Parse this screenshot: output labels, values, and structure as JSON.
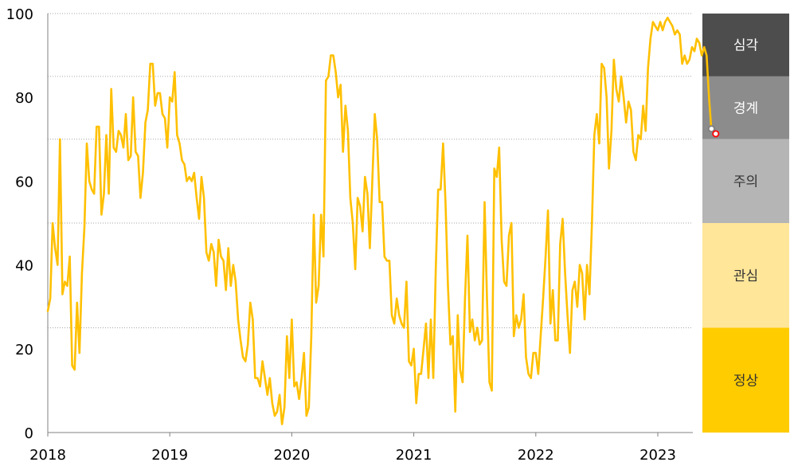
{
  "chart_data": {
    "type": "line",
    "title": "",
    "xlabel": "",
    "ylabel": "",
    "ylim": [
      0,
      100
    ],
    "xlim": [
      2018.0,
      2023.28
    ],
    "grid": "dotted horizontal at band thresholds",
    "y_ticks": [
      "0",
      "20",
      "40",
      "60",
      "80",
      "100"
    ],
    "x_ticks": [
      "2018",
      "2019",
      "2020",
      "2021",
      "2022",
      "2023"
    ],
    "line_color": "#FFC000",
    "bands": [
      {
        "label": "심각",
        "from": 85,
        "to": 100,
        "color": "#4D4D4D",
        "text_color": "#FFFFFF"
      },
      {
        "label": "경계",
        "from": 70,
        "to": 85,
        "color": "#8C8C8C",
        "text_color": "#FFFFFF"
      },
      {
        "label": "주의",
        "from": 50,
        "to": 70,
        "color": "#B5B5B5",
        "text_color": "#333333"
      },
      {
        "label": "관심",
        "from": 25,
        "to": 50,
        "color": "#FFE699",
        "text_color": "#333333"
      },
      {
        "label": "정상",
        "from": 0,
        "to": 25,
        "color": "#FFCC00",
        "text_color": "#333333"
      }
    ],
    "series": [
      {
        "color": "#FFC000",
        "points": [
          [
            2018.0,
            29
          ],
          [
            2018.02,
            32
          ],
          [
            2018.04,
            50
          ],
          [
            2018.06,
            44
          ],
          [
            2018.08,
            40
          ],
          [
            2018.1,
            70
          ],
          [
            2018.12,
            33
          ],
          [
            2018.14,
            36
          ],
          [
            2018.16,
            35
          ],
          [
            2018.18,
            42
          ],
          [
            2018.2,
            16
          ],
          [
            2018.22,
            15
          ],
          [
            2018.24,
            31
          ],
          [
            2018.26,
            19
          ],
          [
            2018.28,
            38
          ],
          [
            2018.3,
            49
          ],
          [
            2018.32,
            69
          ],
          [
            2018.34,
            60
          ],
          [
            2018.36,
            58
          ],
          [
            2018.38,
            57
          ],
          [
            2018.4,
            73
          ],
          [
            2018.42,
            73
          ],
          [
            2018.44,
            52
          ],
          [
            2018.46,
            57
          ],
          [
            2018.48,
            71
          ],
          [
            2018.5,
            57
          ],
          [
            2018.52,
            82
          ],
          [
            2018.54,
            68
          ],
          [
            2018.56,
            67
          ],
          [
            2018.58,
            72
          ],
          [
            2018.6,
            71
          ],
          [
            2018.62,
            68
          ],
          [
            2018.64,
            76
          ],
          [
            2018.66,
            65
          ],
          [
            2018.68,
            66
          ],
          [
            2018.7,
            80
          ],
          [
            2018.72,
            67
          ],
          [
            2018.74,
            66
          ],
          [
            2018.76,
            56
          ],
          [
            2018.78,
            62
          ],
          [
            2018.8,
            74
          ],
          [
            2018.82,
            77
          ],
          [
            2018.84,
            88
          ],
          [
            2018.86,
            88
          ],
          [
            2018.88,
            78
          ],
          [
            2018.9,
            81
          ],
          [
            2018.92,
            81
          ],
          [
            2018.94,
            76
          ],
          [
            2018.96,
            75
          ],
          [
            2018.98,
            68
          ],
          [
            2019.0,
            80
          ],
          [
            2019.02,
            79
          ],
          [
            2019.04,
            86
          ],
          [
            2019.06,
            71
          ],
          [
            2019.08,
            69
          ],
          [
            2019.1,
            65
          ],
          [
            2019.12,
            64
          ],
          [
            2019.14,
            60
          ],
          [
            2019.16,
            61
          ],
          [
            2019.18,
            60
          ],
          [
            2019.2,
            62
          ],
          [
            2019.22,
            56
          ],
          [
            2019.24,
            51
          ],
          [
            2019.26,
            61
          ],
          [
            2019.28,
            56
          ],
          [
            2019.3,
            43
          ],
          [
            2019.32,
            41
          ],
          [
            2019.34,
            45
          ],
          [
            2019.36,
            43
          ],
          [
            2019.38,
            35
          ],
          [
            2019.4,
            46
          ],
          [
            2019.42,
            42
          ],
          [
            2019.44,
            41
          ],
          [
            2019.46,
            34
          ],
          [
            2019.48,
            44
          ],
          [
            2019.5,
            35
          ],
          [
            2019.52,
            40
          ],
          [
            2019.54,
            36
          ],
          [
            2019.56,
            27
          ],
          [
            2019.58,
            22
          ],
          [
            2019.6,
            18
          ],
          [
            2019.62,
            17
          ],
          [
            2019.64,
            21
          ],
          [
            2019.66,
            31
          ],
          [
            2019.68,
            27
          ],
          [
            2019.7,
            13
          ],
          [
            2019.72,
            13
          ],
          [
            2019.74,
            11
          ],
          [
            2019.76,
            17
          ],
          [
            2019.78,
            13
          ],
          [
            2019.8,
            9
          ],
          [
            2019.82,
            13
          ],
          [
            2019.84,
            7
          ],
          [
            2019.86,
            4
          ],
          [
            2019.88,
            5
          ],
          [
            2019.9,
            9
          ],
          [
            2019.92,
            2
          ],
          [
            2019.94,
            6
          ],
          [
            2019.96,
            23
          ],
          [
            2019.98,
            13
          ],
          [
            2020.0,
            27
          ],
          [
            2020.02,
            11
          ],
          [
            2020.04,
            12
          ],
          [
            2020.06,
            8
          ],
          [
            2020.08,
            13
          ],
          [
            2020.1,
            19
          ],
          [
            2020.12,
            4
          ],
          [
            2020.14,
            6
          ],
          [
            2020.16,
            23
          ],
          [
            2020.18,
            52
          ],
          [
            2020.2,
            31
          ],
          [
            2020.22,
            35
          ],
          [
            2020.24,
            52
          ],
          [
            2020.26,
            42
          ],
          [
            2020.28,
            84
          ],
          [
            2020.3,
            85
          ],
          [
            2020.32,
            90
          ],
          [
            2020.34,
            90
          ],
          [
            2020.36,
            86
          ],
          [
            2020.38,
            80
          ],
          [
            2020.4,
            83
          ],
          [
            2020.42,
            67
          ],
          [
            2020.44,
            78
          ],
          [
            2020.46,
            72
          ],
          [
            2020.48,
            56
          ],
          [
            2020.5,
            50
          ],
          [
            2020.52,
            39
          ],
          [
            2020.54,
            56
          ],
          [
            2020.56,
            54
          ],
          [
            2020.58,
            48
          ],
          [
            2020.6,
            61
          ],
          [
            2020.62,
            57
          ],
          [
            2020.64,
            44
          ],
          [
            2020.66,
            60
          ],
          [
            2020.68,
            76
          ],
          [
            2020.7,
            70
          ],
          [
            2020.72,
            55
          ],
          [
            2020.74,
            55
          ],
          [
            2020.76,
            42
          ],
          [
            2020.78,
            41
          ],
          [
            2020.8,
            41
          ],
          [
            2020.82,
            28
          ],
          [
            2020.84,
            26
          ],
          [
            2020.86,
            32
          ],
          [
            2020.88,
            28
          ],
          [
            2020.9,
            26
          ],
          [
            2020.92,
            25
          ],
          [
            2020.94,
            36
          ],
          [
            2020.96,
            17
          ],
          [
            2020.98,
            16
          ],
          [
            2021.0,
            20
          ],
          [
            2021.02,
            7
          ],
          [
            2021.04,
            14
          ],
          [
            2021.06,
            14
          ],
          [
            2021.08,
            20
          ],
          [
            2021.1,
            26
          ],
          [
            2021.12,
            13
          ],
          [
            2021.14,
            27
          ],
          [
            2021.16,
            13
          ],
          [
            2021.18,
            39
          ],
          [
            2021.2,
            58
          ],
          [
            2021.22,
            58
          ],
          [
            2021.24,
            69
          ],
          [
            2021.26,
            55
          ],
          [
            2021.28,
            35
          ],
          [
            2021.3,
            21
          ],
          [
            2021.32,
            23
          ],
          [
            2021.34,
            5
          ],
          [
            2021.36,
            28
          ],
          [
            2021.38,
            15
          ],
          [
            2021.4,
            12
          ],
          [
            2021.42,
            32
          ],
          [
            2021.44,
            47
          ],
          [
            2021.46,
            24
          ],
          [
            2021.48,
            27
          ],
          [
            2021.5,
            22
          ],
          [
            2021.52,
            25
          ],
          [
            2021.54,
            21
          ],
          [
            2021.56,
            22
          ],
          [
            2021.58,
            55
          ],
          [
            2021.6,
            32
          ],
          [
            2021.62,
            12
          ],
          [
            2021.64,
            10
          ],
          [
            2021.66,
            63
          ],
          [
            2021.68,
            61
          ],
          [
            2021.7,
            68
          ],
          [
            2021.72,
            46
          ],
          [
            2021.74,
            36
          ],
          [
            2021.76,
            35
          ],
          [
            2021.78,
            47
          ],
          [
            2021.8,
            50
          ],
          [
            2021.82,
            23
          ],
          [
            2021.84,
            28
          ],
          [
            2021.86,
            25
          ],
          [
            2021.88,
            27
          ],
          [
            2021.9,
            33
          ],
          [
            2021.92,
            18
          ],
          [
            2021.94,
            14
          ],
          [
            2021.96,
            13
          ],
          [
            2021.98,
            19
          ],
          [
            2022.0,
            19
          ],
          [
            2022.02,
            14
          ],
          [
            2022.04,
            23
          ],
          [
            2022.06,
            32
          ],
          [
            2022.08,
            42
          ],
          [
            2022.1,
            53
          ],
          [
            2022.12,
            26
          ],
          [
            2022.14,
            34
          ],
          [
            2022.16,
            22
          ],
          [
            2022.18,
            22
          ],
          [
            2022.2,
            45
          ],
          [
            2022.22,
            51
          ],
          [
            2022.24,
            38
          ],
          [
            2022.26,
            28
          ],
          [
            2022.28,
            19
          ],
          [
            2022.3,
            34
          ],
          [
            2022.32,
            36
          ],
          [
            2022.34,
            30
          ],
          [
            2022.36,
            40
          ],
          [
            2022.38,
            38
          ],
          [
            2022.4,
            27
          ],
          [
            2022.42,
            40
          ],
          [
            2022.44,
            33
          ],
          [
            2022.46,
            50
          ],
          [
            2022.48,
            71
          ],
          [
            2022.5,
            76
          ],
          [
            2022.52,
            69
          ],
          [
            2022.54,
            88
          ],
          [
            2022.56,
            87
          ],
          [
            2022.58,
            80
          ],
          [
            2022.6,
            63
          ],
          [
            2022.62,
            72
          ],
          [
            2022.64,
            89
          ],
          [
            2022.66,
            82
          ],
          [
            2022.68,
            79
          ],
          [
            2022.7,
            85
          ],
          [
            2022.72,
            80
          ],
          [
            2022.74,
            74
          ],
          [
            2022.76,
            79
          ],
          [
            2022.78,
            77
          ],
          [
            2022.8,
            67
          ],
          [
            2022.82,
            65
          ],
          [
            2022.84,
            71
          ],
          [
            2022.86,
            70
          ],
          [
            2022.88,
            78
          ],
          [
            2022.9,
            72
          ],
          [
            2022.92,
            87
          ],
          [
            2022.94,
            94
          ],
          [
            2022.96,
            98
          ],
          [
            2022.98,
            97
          ],
          [
            2023.0,
            96
          ],
          [
            2023.02,
            98
          ],
          [
            2023.04,
            96
          ],
          [
            2023.06,
            98
          ],
          [
            2023.08,
            99
          ],
          [
            2023.1,
            98
          ],
          [
            2023.12,
            97
          ],
          [
            2023.14,
            95
          ],
          [
            2023.16,
            96
          ],
          [
            2023.18,
            95
          ],
          [
            2023.2,
            88
          ],
          [
            2023.22,
            90
          ],
          [
            2023.24,
            88
          ],
          [
            2023.26,
            89
          ],
          [
            2023.28,
            92
          ],
          [
            2023.3,
            91
          ],
          [
            2023.32,
            94
          ],
          [
            2023.34,
            93
          ],
          [
            2023.36,
            90
          ],
          [
            2023.38,
            92
          ],
          [
            2023.4,
            90
          ],
          [
            2023.42,
            80
          ],
          [
            2023.44,
            72
          ]
        ]
      }
    ],
    "end_markers": [
      {
        "x": 2023.44,
        "y": 72.5,
        "color": "#7F7F7F"
      },
      {
        "x": 2023.475,
        "y": 71.3,
        "color": "#FF0000"
      }
    ]
  }
}
